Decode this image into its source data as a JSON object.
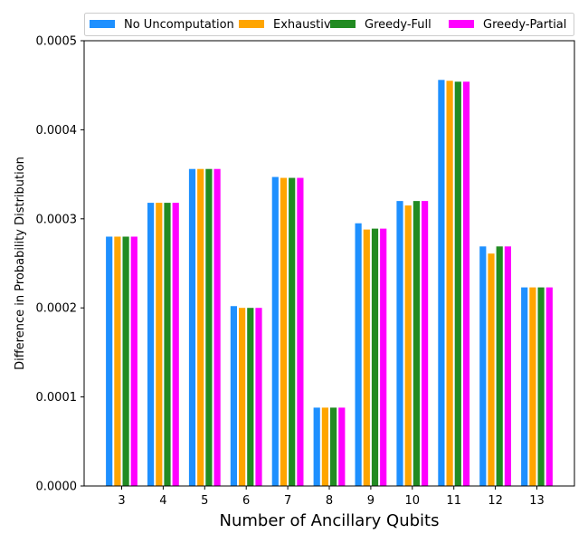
{
  "chart_data": {
    "type": "bar",
    "xlabel": "Number of Ancillary Qubits",
    "ylabel": "Difference in Probability Distribution",
    "ylim": [
      0,
      0.0005
    ],
    "yticks": [
      "0.0000",
      "0.0001",
      "0.0002",
      "0.0003",
      "0.0004",
      "0.0005"
    ],
    "ytick_values": [
      0,
      0.0001,
      0.0002,
      0.0003,
      0.0004,
      0.0005
    ],
    "categories": [
      "3",
      "4",
      "5",
      "6",
      "7",
      "8",
      "9",
      "10",
      "11",
      "12",
      "13"
    ],
    "legend_placement": "top",
    "grid": false,
    "series": [
      {
        "name": "No Uncomputation",
        "color": "#1e90ff",
        "values": [
          0.00028,
          0.000318,
          0.000356,
          0.000202,
          0.000347,
          8.8e-05,
          0.000295,
          0.00032,
          0.000456,
          0.000269,
          0.000223
        ]
      },
      {
        "name": "Exhaustive",
        "color": "#ffa500",
        "values": [
          0.00028,
          0.000318,
          0.000356,
          0.0002,
          0.000346,
          8.8e-05,
          0.000288,
          0.000315,
          0.000455,
          0.000261,
          0.000223
        ]
      },
      {
        "name": "Greedy-Full",
        "color": "#228b22",
        "values": [
          0.00028,
          0.000318,
          0.000356,
          0.0002,
          0.000346,
          8.8e-05,
          0.000289,
          0.00032,
          0.000454,
          0.000269,
          0.000223
        ]
      },
      {
        "name": "Greedy-Partial",
        "color": "#ff00ff",
        "values": [
          0.00028,
          0.000318,
          0.000356,
          0.0002,
          0.000346,
          8.8e-05,
          0.000289,
          0.00032,
          0.000454,
          0.000269,
          0.000223
        ]
      }
    ]
  }
}
